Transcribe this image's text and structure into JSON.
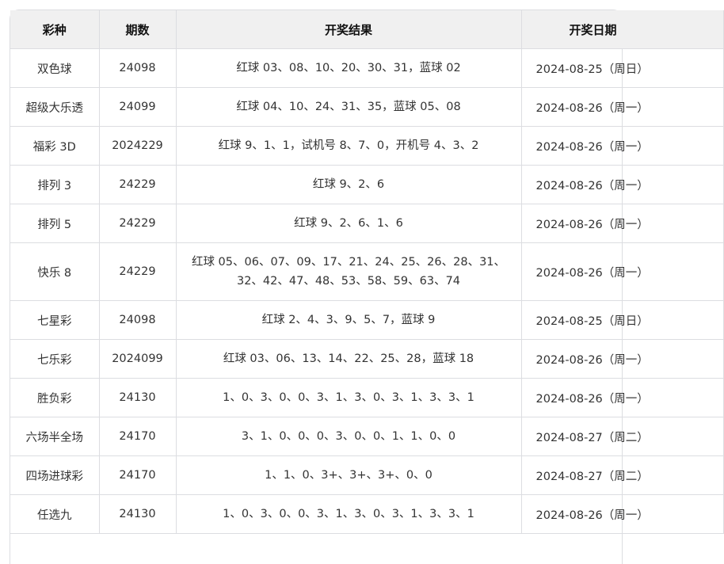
{
  "table": {
    "headers": [
      "彩种",
      "期数",
      "开奖结果",
      "开奖日期"
    ],
    "rows": [
      {
        "name": "双色球",
        "issue": "24098",
        "result": "红球 03、08、10、20、30、31，蓝球 02",
        "date": "2024-08-25（周日）"
      },
      {
        "name": "超级大乐透",
        "issue": "24099",
        "result": "红球 04、10、24、31、35，蓝球 05、08",
        "date": "2024-08-26（周一）"
      },
      {
        "name": "福彩 3D",
        "issue": "2024229",
        "result": "红球 9、1、1，试机号 8、7、0，开机号 4、3、2",
        "date": "2024-08-26（周一）"
      },
      {
        "name": "排列 3",
        "issue": "24229",
        "result": "红球 9、2、6",
        "date": "2024-08-26（周一）"
      },
      {
        "name": "排列 5",
        "issue": "24229",
        "result": "红球 9、2、6、1、6",
        "date": "2024-08-26（周一）"
      },
      {
        "name": "快乐 8",
        "issue": "24229",
        "result": "红球 05、06、07、09、17、21、24、25、26、28、31、32、42、47、48、53、58、59、63、74",
        "date": "2024-08-26（周一）"
      },
      {
        "name": "七星彩",
        "issue": "24098",
        "result": "红球 2、4、3、9、5、7，蓝球 9",
        "date": "2024-08-25（周日）"
      },
      {
        "name": "七乐彩",
        "issue": "2024099",
        "result": "红球 03、06、13、14、22、25、28，蓝球 18",
        "date": "2024-08-26（周一）"
      },
      {
        "name": "胜负彩",
        "issue": "24130",
        "result": "1、0、3、0、0、3、1、3、0、3、1、3、3、1",
        "date": "2024-08-26（周一）"
      },
      {
        "name": "六场半全场",
        "issue": "24170",
        "result": "3、1、0、0、0、3、0、0、1、1、0、0",
        "date": "2024-08-27（周二）"
      },
      {
        "name": "四场进球彩",
        "issue": "24170",
        "result": "1、1、0、3+、3+、3+、0、0",
        "date": "2024-08-27（周二）"
      },
      {
        "name": "任选九",
        "issue": "24130",
        "result": "1、0、3、0、0、3、1、3、0、3、1、3、3、1",
        "date": "2024-08-26（周一）"
      }
    ]
  }
}
